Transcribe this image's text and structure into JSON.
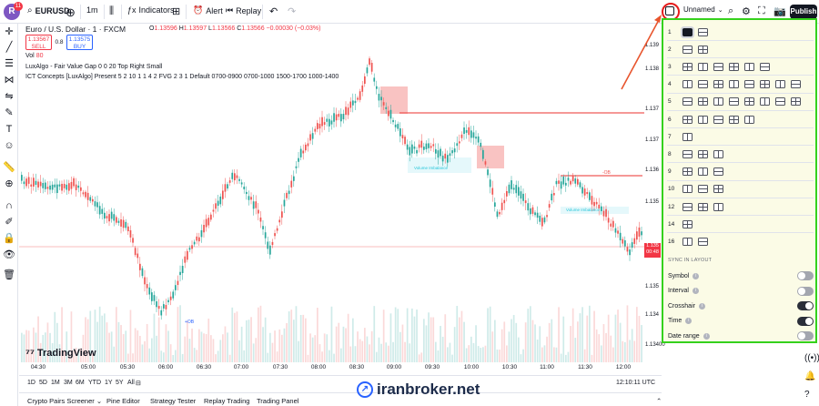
{
  "header": {
    "logo_letter": "R",
    "logo_badge": "11",
    "symbol": "EURUSD",
    "interval": "1m",
    "indicators_label": "Indicators",
    "alert_label": "Alert",
    "replay_label": "Replay",
    "layout_name": "Unnamed",
    "publish_label": "Publish"
  },
  "legend": {
    "title": "Euro / U.S. Dollar · 1 · FXCM",
    "ohlc": {
      "o_key": "O",
      "o": "1.13596",
      "h_key": "H",
      "h": "1.13597",
      "l_key": "L",
      "l": "1.13566",
      "c_key": "C",
      "c": "1.13566",
      "chg": "−0.00030 (−0.03%)"
    },
    "sell_price": "1.13567",
    "sell_label": "SELL",
    "spread": "0.8",
    "buy_price": "1.13575",
    "buy_label": "BUY",
    "vol_label": "Vol",
    "vol_value": "80",
    "indicator1": "LuxAlgo - Fair Value Gap 0 0 20 Top Right Small",
    "indicator2": "ICT Concepts [LuxAlgo] Present 5 2 10 1 1 4 2 FVG 2 3 1 Default 0700-0900 0700-1000 1500-1700 1000-1400"
  },
  "yaxis": [
    "1.139",
    "1.138",
    "1.137",
    "1.137",
    "1.136",
    "1.135",
    "1.135",
    "1.134",
    "1.134"
  ],
  "price_tag": {
    "price": "1.135",
    "countdown": "00:48",
    "bottom": "1.13400"
  },
  "xaxis": [
    "04:30",
    "05:00",
    "05:30",
    "06:00",
    "06:30",
    "07:00",
    "07:30",
    "08:00",
    "08:30",
    "09:00",
    "09:30",
    "10:00",
    "10:30",
    "11:00",
    "11:30",
    "12:00"
  ],
  "annotations": {
    "a1": "Volume Imbalance",
    "a2": "Volume Imbalance",
    "a3": "-OB",
    "a4": "+OB"
  },
  "brand": {
    "tradingview": "TradingView"
  },
  "ranges": [
    "1D",
    "5D",
    "1M",
    "3M",
    "6M",
    "YTD",
    "1Y",
    "5Y",
    "All"
  ],
  "clock": "12:10:11 UTC",
  "tabs": [
    "Crypto Pairs Screener",
    "Pine Editor",
    "Strategy Tester",
    "Replay Trading",
    "Trading Panel"
  ],
  "watermark": "iranbroker.net",
  "layout_panel": {
    "rows": [
      {
        "num": "1",
        "count": 2
      },
      {
        "num": "2",
        "count": 2
      },
      {
        "num": "3",
        "count": 6
      },
      {
        "num": "4",
        "count": 8
      },
      {
        "num": "5",
        "count": 8
      },
      {
        "num": "6",
        "count": 5
      },
      {
        "num": "7",
        "count": 1
      },
      {
        "num": "8",
        "count": 3
      },
      {
        "num": "9",
        "count": 3
      },
      {
        "num": "10",
        "count": 3
      },
      {
        "num": "12",
        "count": 3
      },
      {
        "num": "14",
        "count": 1
      },
      {
        "num": "16",
        "count": 2
      }
    ],
    "sync_heading": "SYNC IN LAYOUT",
    "sync": [
      {
        "label": "Symbol",
        "on": false
      },
      {
        "label": "Interval",
        "on": false
      },
      {
        "label": "Crosshair",
        "on": true
      },
      {
        "label": "Time",
        "on": true
      },
      {
        "label": "Date range",
        "on": false
      }
    ]
  },
  "colors": {
    "up": "#26a69a",
    "down": "#ef5350",
    "highlight": "#35d11c",
    "arrow": "#e8552e"
  }
}
